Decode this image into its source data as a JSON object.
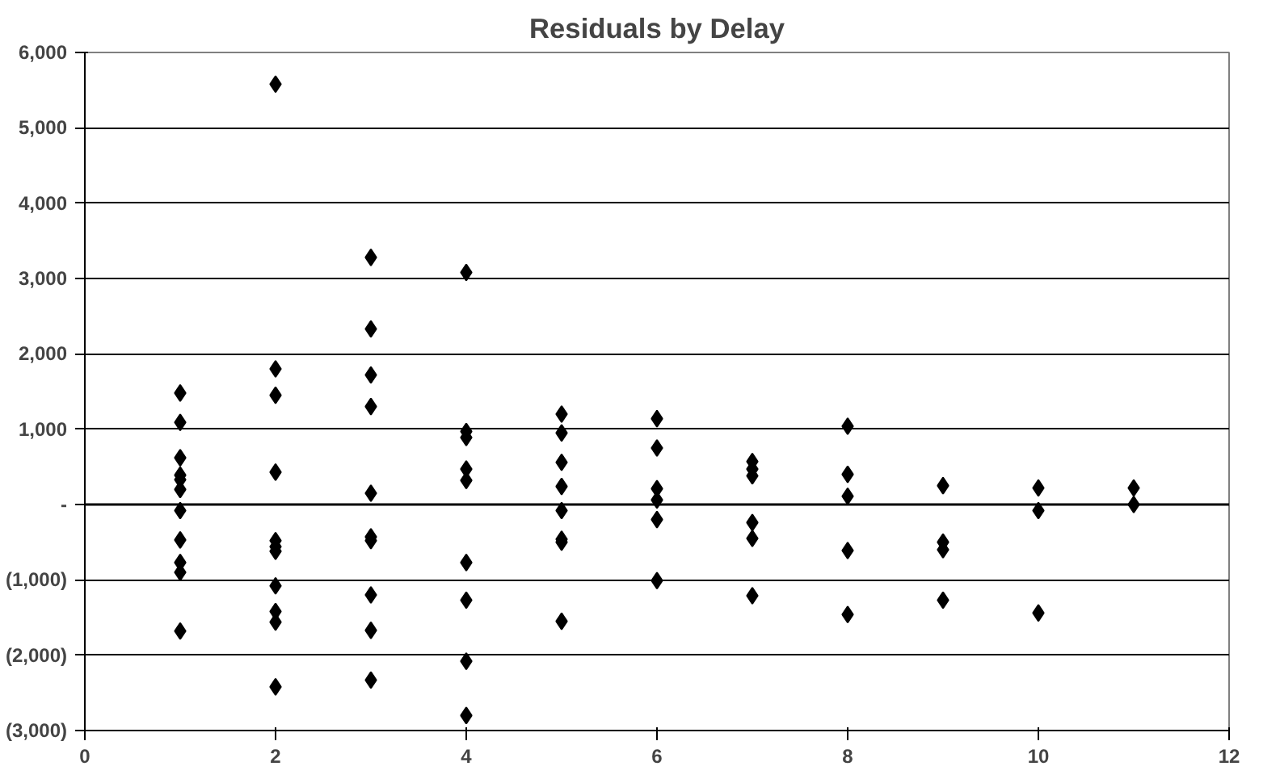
{
  "chart_data": {
    "type": "scatter",
    "title": "Residuals by Delay",
    "marker": "diamond",
    "grid": "y",
    "xlim": [
      0,
      12
    ],
    "xticks": [
      0,
      2,
      4,
      6,
      8,
      10,
      12
    ],
    "ylim": [
      -3000,
      6000
    ],
    "yticks": [
      {
        "value": -3000,
        "label": "(3,000)"
      },
      {
        "value": -2000,
        "label": "(2,000)"
      },
      {
        "value": -1000,
        "label": "(1,000)"
      },
      {
        "value": 0,
        "label": "-"
      },
      {
        "value": 1000,
        "label": "1,000"
      },
      {
        "value": 2000,
        "label": "2,000"
      },
      {
        "value": 3000,
        "label": "3,000"
      },
      {
        "value": 4000,
        "label": "4,000"
      },
      {
        "value": 5000,
        "label": "5,000"
      },
      {
        "value": 6000,
        "label": "6,000"
      }
    ],
    "series": [
      {
        "color": "#000000",
        "x": [
          1,
          1,
          1,
          1,
          1,
          1,
          1,
          1,
          1,
          1,
          1,
          2,
          2,
          2,
          2,
          2,
          2,
          2,
          2,
          2,
          2,
          2,
          3,
          3,
          3,
          3,
          3,
          3,
          3,
          3,
          3,
          3,
          4,
          4,
          4,
          4,
          4,
          4,
          4,
          4,
          4,
          5,
          5,
          5,
          5,
          5,
          5,
          5,
          5,
          6,
          6,
          6,
          6,
          6,
          6,
          7,
          7,
          7,
          7,
          7,
          7,
          8,
          8,
          8,
          8,
          8,
          9,
          9,
          9,
          9,
          10,
          10,
          10,
          11,
          11
        ],
        "values": [
          1480,
          1090,
          620,
          390,
          330,
          200,
          -80,
          -470,
          -770,
          -900,
          -1680,
          5580,
          1800,
          1450,
          430,
          -480,
          -560,
          -620,
          -1080,
          -1420,
          -1560,
          -2420,
          3280,
          2330,
          1720,
          1300,
          150,
          -430,
          -480,
          -1200,
          -1670,
          -2330,
          3080,
          970,
          890,
          470,
          320,
          -770,
          -1270,
          -2080,
          -2800,
          1200,
          950,
          560,
          240,
          -80,
          -460,
          -500,
          -1550,
          1140,
          750,
          210,
          60,
          -200,
          -1010,
          570,
          470,
          380,
          -240,
          -450,
          -1210,
          1040,
          400,
          110,
          -610,
          -1460,
          250,
          -500,
          -600,
          -1270,
          220,
          -80,
          -1440,
          220,
          0
        ]
      }
    ]
  }
}
